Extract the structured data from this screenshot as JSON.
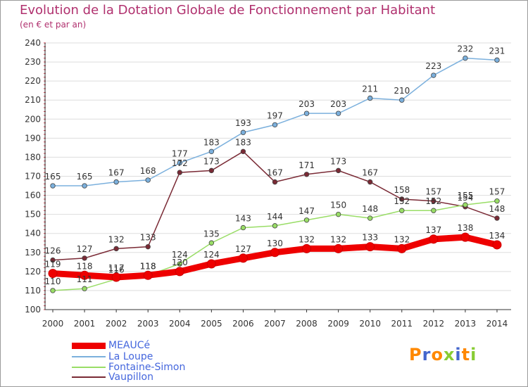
{
  "title": "Evolution de la Dotation Globale de Fonctionnement par Habitant",
  "subtitle": "(en € et par an)",
  "brand": "Proxiti",
  "chart_data": {
    "type": "line",
    "title": "Evolution de la Dotation Globale de Fonctionnement par Habitant",
    "subtitle": "(en € et par an)",
    "xlabel": "",
    "ylabel": "",
    "ylim": [
      100,
      240
    ],
    "yticks": [
      100,
      110,
      120,
      130,
      140,
      150,
      160,
      170,
      180,
      190,
      200,
      210,
      220,
      230,
      240
    ],
    "grid": "horizontal",
    "legend_position": "bottom-left",
    "categories": [
      "2000",
      "2001",
      "2002",
      "2003",
      "2004",
      "2005",
      "2006",
      "2007",
      "2008",
      "2009",
      "2010",
      "2011",
      "2012",
      "2013",
      "2014"
    ],
    "series": [
      {
        "name": "Vaupillon",
        "color": "#7a2a35",
        "values": [
          126,
          127,
          132,
          133,
          172,
          173,
          183,
          167,
          171,
          173,
          167,
          158,
          157,
          154,
          148
        ],
        "labels": [
          "126",
          "127",
          "132",
          "133",
          "172",
          "173",
          "183",
          "167",
          "171",
          "173",
          "167",
          "158",
          "157",
          "154",
          "148"
        ]
      },
      {
        "name": "Fontaine-Simon",
        "color": "#99dd66",
        "values": [
          110,
          111,
          116,
          118,
          124,
          135,
          143,
          144,
          147,
          150,
          148,
          152,
          152,
          155,
          157
        ],
        "labels": [
          "110",
          "111",
          "116",
          "118",
          "124",
          "135",
          "143",
          "144",
          "147",
          "150",
          "148",
          "152",
          "152",
          "155",
          "157"
        ]
      },
      {
        "name": "La Loupe",
        "color": "#7bb0dd",
        "values": [
          165,
          165,
          167,
          168,
          177,
          183,
          193,
          197,
          203,
          203,
          211,
          210,
          223,
          232,
          231
        ],
        "labels": [
          "165",
          "165",
          "167",
          "168",
          "177",
          "183",
          "193",
          "197",
          "203",
          "203",
          "211",
          "210",
          "223",
          "232",
          "231"
        ]
      },
      {
        "name": "MEAUCé",
        "color": "#ee0000",
        "values": [
          119,
          118,
          117,
          118,
          120,
          124,
          127,
          130,
          132,
          132,
          133,
          132,
          137,
          138,
          134
        ],
        "labels": [
          "119",
          "118",
          "117",
          "118",
          "120",
          "124",
          "127",
          "130",
          "132",
          "132",
          "133",
          "132",
          "137",
          "138",
          "134"
        ]
      }
    ]
  },
  "legend": [
    {
      "label": "MEAUCé",
      "color": "#ee0000"
    },
    {
      "label": "La Loupe",
      "color": "#7bb0dd"
    },
    {
      "label": "Fontaine-Simon",
      "color": "#99dd66"
    },
    {
      "label": "Vaupillon",
      "color": "#7a2a35"
    }
  ]
}
